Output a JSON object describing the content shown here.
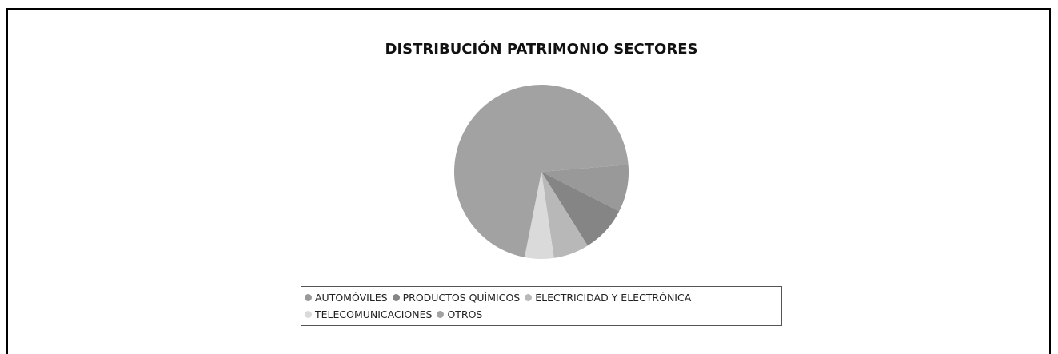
{
  "chart_data": {
    "type": "pie",
    "title": "DISTRIBUCIÓN PATRIMONIO SECTORES",
    "categories": [
      "AUTOMÓVILES",
      "PRODUCTOS QUÍMICOS",
      "ELECTRICIDAD Y ELECTRÓNICA",
      "TELECOMUNICACIONES",
      "OTROS"
    ],
    "values": [
      8.8,
      8.6,
      6.6,
      5.4,
      70.6
    ],
    "colors": [
      "#999999",
      "#858585",
      "#b8b8b8",
      "#dadada",
      "#a2a2a2"
    ],
    "legend": "bottom"
  }
}
